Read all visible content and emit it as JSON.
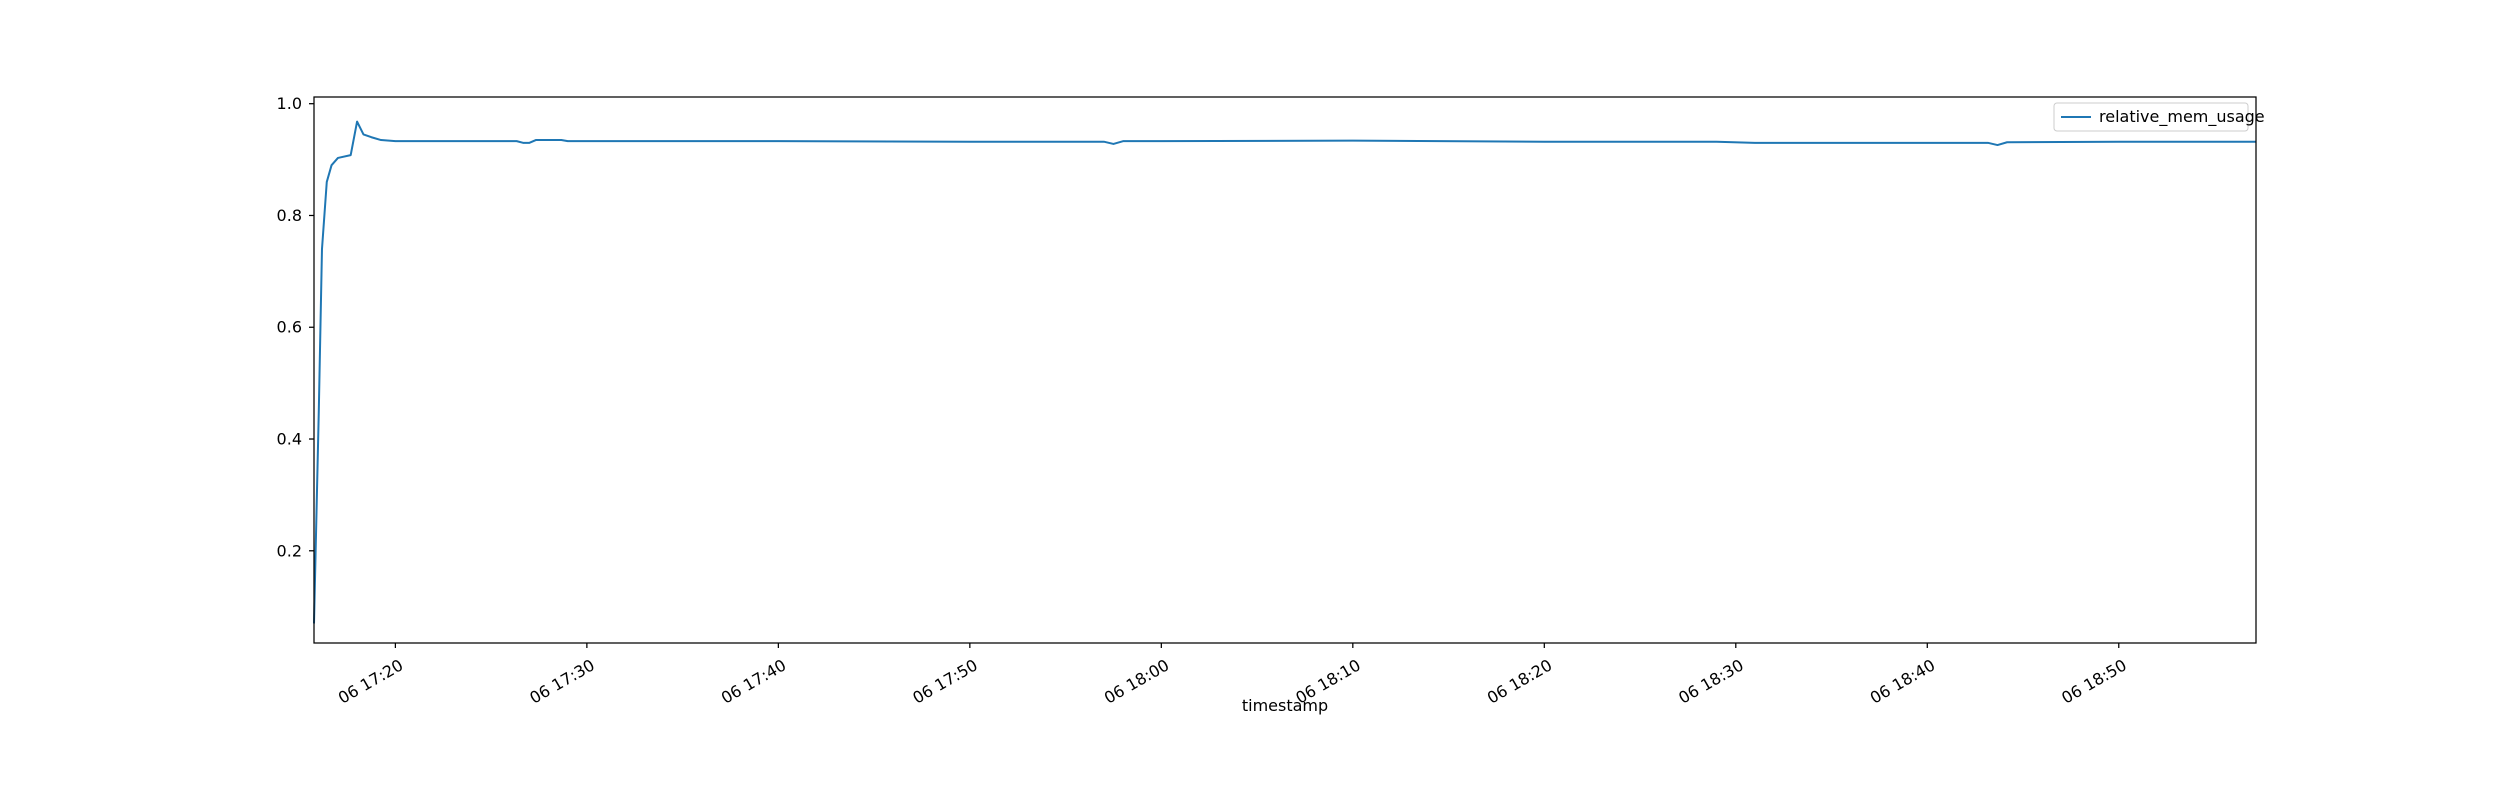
{
  "chart_data": {
    "type": "line",
    "title": "",
    "xlabel": "timestamp",
    "ylabel": "",
    "legend": {
      "placement": "top-right",
      "entries": [
        "relative_mem_usage"
      ]
    },
    "grid": false,
    "xlim": [
      "06 17:15:45",
      "06 18:57:10"
    ],
    "ylim": [
      0.035,
      1.012
    ],
    "xticks": [
      {
        "t": "06 17:20:00",
        "label": "06 17:20"
      },
      {
        "t": "06 17:30:00",
        "label": "06 17:30"
      },
      {
        "t": "06 17:40:00",
        "label": "06 17:40"
      },
      {
        "t": "06 17:50:00",
        "label": "06 17:50"
      },
      {
        "t": "06 18:00:00",
        "label": "06 18:00"
      },
      {
        "t": "06 18:10:00",
        "label": "06 18:10"
      },
      {
        "t": "06 18:20:00",
        "label": "06 18:20"
      },
      {
        "t": "06 18:30:00",
        "label": "06 18:30"
      },
      {
        "t": "06 18:40:00",
        "label": "06 18:40"
      },
      {
        "t": "06 18:50:00",
        "label": "06 18:50"
      }
    ],
    "yticks": [
      0.2,
      0.4,
      0.6,
      0.8,
      1.0
    ],
    "ytick_labels": [
      "0.2",
      "0.4",
      "0.6",
      "0.8",
      "1.0"
    ],
    "series": [
      {
        "name": "relative_mem_usage",
        "color": "#1f77b4",
        "points": [
          {
            "t": "06 17:15:45",
            "y": 0.07
          },
          {
            "t": "06 17:16:00",
            "y": 0.45
          },
          {
            "t": "06 17:16:10",
            "y": 0.74
          },
          {
            "t": "06 17:16:25",
            "y": 0.86
          },
          {
            "t": "06 17:16:40",
            "y": 0.89
          },
          {
            "t": "06 17:17:00",
            "y": 0.903
          },
          {
            "t": "06 17:17:40",
            "y": 0.908
          },
          {
            "t": "06 17:18:00",
            "y": 0.968
          },
          {
            "t": "06 17:18:20",
            "y": 0.945
          },
          {
            "t": "06 17:18:45",
            "y": 0.94
          },
          {
            "t": "06 17:19:15",
            "y": 0.935
          },
          {
            "t": "06 17:20:00",
            "y": 0.933
          },
          {
            "t": "06 17:25:00",
            "y": 0.933
          },
          {
            "t": "06 17:26:20",
            "y": 0.933
          },
          {
            "t": "06 17:26:40",
            "y": 0.93
          },
          {
            "t": "06 17:27:00",
            "y": 0.93
          },
          {
            "t": "06 17:27:20",
            "y": 0.935
          },
          {
            "t": "06 17:28:40",
            "y": 0.935
          },
          {
            "t": "06 17:29:00",
            "y": 0.933
          },
          {
            "t": "06 17:40:00",
            "y": 0.933
          },
          {
            "t": "06 17:50:00",
            "y": 0.932
          },
          {
            "t": "06 17:57:00",
            "y": 0.932
          },
          {
            "t": "06 17:57:30",
            "y": 0.928
          },
          {
            "t": "06 17:58:00",
            "y": 0.933
          },
          {
            "t": "06 18:00:00",
            "y": 0.933
          },
          {
            "t": "06 18:10:00",
            "y": 0.934
          },
          {
            "t": "06 18:20:00",
            "y": 0.932
          },
          {
            "t": "06 18:29:00",
            "y": 0.932
          },
          {
            "t": "06 18:31:00",
            "y": 0.93
          },
          {
            "t": "06 18:40:00",
            "y": 0.93
          },
          {
            "t": "06 18:43:10",
            "y": 0.93
          },
          {
            "t": "06 18:43:40",
            "y": 0.926
          },
          {
            "t": "06 18:44:10",
            "y": 0.931
          },
          {
            "t": "06 18:50:00",
            "y": 0.932
          },
          {
            "t": "06 18:57:10",
            "y": 0.932
          }
        ]
      }
    ]
  }
}
